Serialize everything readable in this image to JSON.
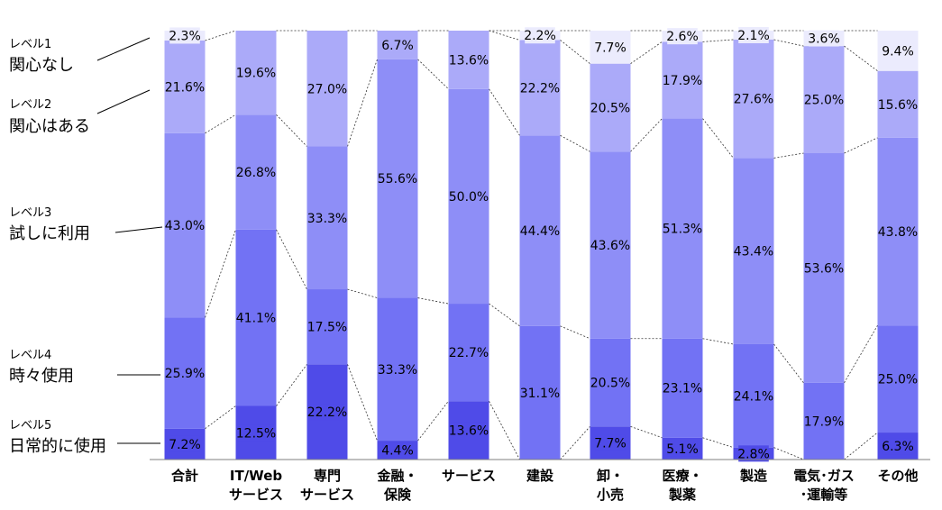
{
  "chart_data": {
    "type": "bar",
    "stacked": "100%",
    "categories": [
      [
        "合計"
      ],
      [
        "IT/Web",
        "サービス"
      ],
      [
        "専門",
        "サービス"
      ],
      [
        "金融・",
        "保険"
      ],
      [
        "サービス"
      ],
      [
        "建設"
      ],
      [
        "卸・",
        "小売"
      ],
      [
        "医療・",
        "製薬"
      ],
      [
        "製造"
      ],
      [
        "電気･ガス",
        "･運輸等"
      ],
      [
        "その他"
      ]
    ],
    "series": [
      {
        "name": "レベル5 日常的に使用",
        "sub": "レベル5",
        "label": "日常的に使用",
        "color": "#4f4be8",
        "values": [
          7.2,
          12.5,
          22.2,
          4.4,
          13.6,
          0,
          7.7,
          5.1,
          2.8,
          0,
          6.3
        ],
        "labels": [
          "7.2%",
          "12.5%",
          "22.2%",
          "4.4%",
          "13.6%",
          "",
          "7.7%",
          "5.1%",
          "2.8%",
          "",
          "6.3%"
        ]
      },
      {
        "name": "レベル4 時々使用",
        "sub": "レベル4",
        "label": "時々使用",
        "color": "#7272f4",
        "values": [
          25.9,
          41.1,
          17.5,
          33.3,
          22.7,
          31.1,
          20.5,
          23.1,
          24.1,
          17.9,
          25.0
        ],
        "labels": [
          "25.9%",
          "41.1%",
          "17.5%",
          "33.3%",
          "22.7%",
          "31.1%",
          "20.5%",
          "23.1%",
          "24.1%",
          "17.9%",
          "25.0%"
        ]
      },
      {
        "name": "レベル3 試しに利用",
        "sub": "レベル3",
        "label": "試しに利用",
        "color": "#8e8ef7",
        "values": [
          43.0,
          26.8,
          33.3,
          55.6,
          50.0,
          44.4,
          43.6,
          51.3,
          43.4,
          53.6,
          43.8
        ],
        "labels": [
          "43.0%",
          "26.8%",
          "33.3%",
          "55.6%",
          "50.0%",
          "44.4%",
          "43.6%",
          "51.3%",
          "43.4%",
          "53.6%",
          "43.8%"
        ]
      },
      {
        "name": "レベル2 関心はある",
        "sub": "レベル2",
        "label": "関心はある",
        "color": "#abaaf9",
        "values": [
          21.6,
          19.6,
          27.0,
          6.7,
          13.6,
          22.2,
          20.5,
          17.9,
          27.6,
          25.0,
          15.6
        ],
        "labels": [
          "21.6%",
          "19.6%",
          "27.0%",
          "6.7%",
          "13.6%",
          "22.2%",
          "20.5%",
          "17.9%",
          "27.6%",
          "25.0%",
          "15.6%"
        ]
      },
      {
        "name": "レベル1 関心なし",
        "sub": "レベル1",
        "label": "関心なし",
        "color": "#ebebfd",
        "values": [
          2.3,
          0,
          0,
          0,
          0,
          2.2,
          7.7,
          2.6,
          2.1,
          3.6,
          9.4
        ],
        "labels": [
          "2.3%",
          "",
          "",
          "",
          "",
          "2.2%",
          "7.7%",
          "2.6%",
          "2.1%",
          "3.6%",
          "9.4%"
        ]
      }
    ],
    "ylim": [
      0,
      100
    ],
    "xlabel": "",
    "ylabel": "",
    "connector_lines": "dashed",
    "legend": "left"
  }
}
